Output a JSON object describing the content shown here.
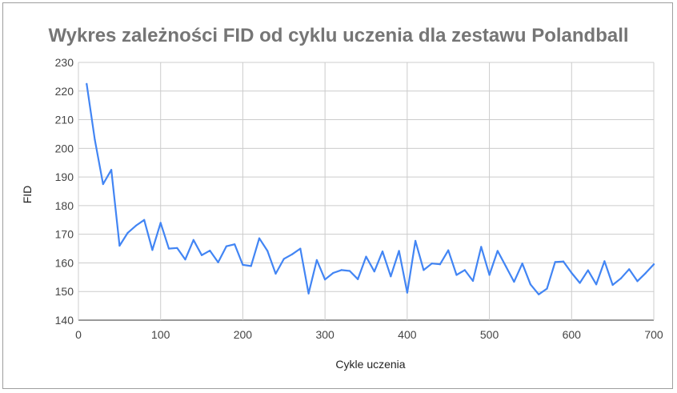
{
  "chart_data": {
    "type": "line",
    "title": "Wykres zależności FID od cyklu uczenia dla zestawu Polandball",
    "xlabel": "Cykle uczenia",
    "ylabel": "FID",
    "xlim": [
      0,
      700
    ],
    "ylim": [
      140,
      230
    ],
    "xticks": [
      0,
      100,
      200,
      300,
      400,
      500,
      600,
      700
    ],
    "yticks": [
      140,
      150,
      160,
      170,
      180,
      190,
      200,
      210,
      220,
      230
    ],
    "grid": true,
    "legend": "none",
    "line_color": "#4285f4",
    "series": [
      {
        "x": [
          10,
          20,
          30,
          40,
          50,
          60,
          70,
          80,
          90,
          100,
          110,
          120,
          130,
          140,
          150,
          160,
          170,
          180,
          190,
          200,
          210,
          220,
          230,
          240,
          250,
          260,
          270,
          280,
          290,
          300,
          310,
          320,
          330,
          340,
          350,
          360,
          370,
          380,
          390,
          400,
          410,
          420,
          430,
          440,
          450,
          460,
          470,
          480,
          490,
          500,
          510,
          520,
          530,
          540,
          550,
          560,
          570,
          580,
          590,
          600,
          610,
          620,
          630,
          640,
          650,
          660,
          670,
          680,
          690,
          700
        ],
        "y": [
          222.5,
          203,
          187.5,
          192.5,
          166,
          170.5,
          173,
          175,
          164.5,
          174,
          165,
          165.2,
          161.2,
          168,
          162.7,
          164.3,
          160.2,
          165.8,
          166.5,
          159.3,
          158.9,
          168.6,
          164.2,
          156.2,
          161.4,
          163,
          165,
          149.3,
          161,
          154.2,
          156.5,
          157.5,
          157.2,
          154.3,
          162.2,
          157,
          164,
          155.3,
          164.2,
          149.6,
          167.7,
          157.5,
          159.8,
          159.5,
          164.4,
          155.8,
          157.5,
          153.7,
          165.6,
          155.8,
          164.2,
          158.8,
          153.4,
          159.8,
          152.5,
          149,
          151,
          160.3,
          160.5,
          156.5,
          153,
          157.4,
          152.5,
          160.6,
          152.3,
          154.6,
          157.8,
          153.6,
          156.4,
          159.5
        ]
      }
    ]
  }
}
